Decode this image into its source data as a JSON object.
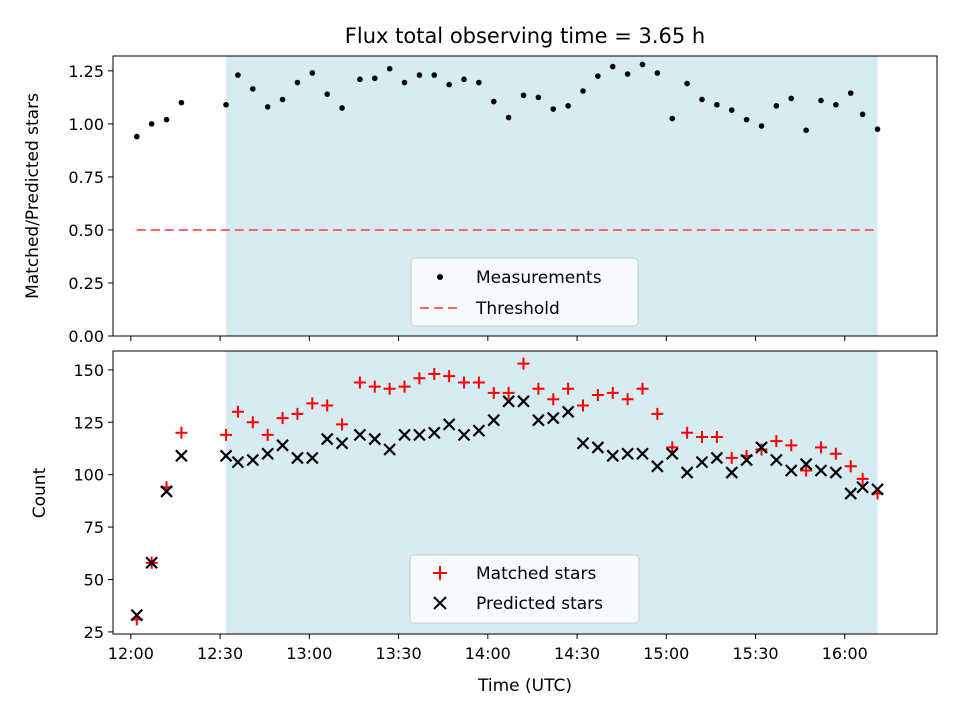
{
  "title": "Flux total observing time = 3.65 h",
  "colors": {
    "shade": "#add8e6",
    "threshold": "#ff6666",
    "matched": "#ff0000",
    "predicted": "#000000",
    "measurement": "#000000"
  },
  "chart_data": [
    {
      "type": "scatter",
      "name": "ratio",
      "title": "Flux total observing time = 3.65 h",
      "xlabel": "",
      "ylabel": "Matched/Predicted stars",
      "x_unit": "minutes after 12:00 UTC",
      "xlim": [
        -6,
        271
      ],
      "ylim": [
        0.0,
        1.32
      ],
      "yticks": [
        "0.00",
        "0.25",
        "0.50",
        "0.75",
        "1.00",
        "1.25"
      ],
      "yticks_values": [
        0.0,
        0.25,
        0.5,
        0.75,
        1.0,
        1.25
      ],
      "shaded_span": [
        32,
        251
      ],
      "legend": {
        "placement": "lower center",
        "entries": [
          "Measurements",
          "Threshold"
        ]
      },
      "threshold": {
        "name": "Threshold",
        "y": 0.5,
        "x_range": [
          2,
          251
        ]
      },
      "series": [
        {
          "name": "Measurements",
          "x": [
            2,
            7,
            12,
            17,
            32,
            36,
            41,
            46,
            51,
            56,
            61,
            66,
            71,
            77,
            82,
            87,
            92,
            97,
            102,
            107,
            112,
            117,
            122,
            127,
            132,
            137,
            142,
            147,
            152,
            157,
            162,
            167,
            172,
            177,
            182,
            187,
            192,
            197,
            202,
            207,
            212,
            217,
            222,
            227,
            232,
            237,
            242,
            246,
            251
          ],
          "y": [
            0.94,
            1.0,
            1.02,
            1.1,
            1.09,
            1.23,
            1.165,
            1.08,
            1.115,
            1.195,
            1.24,
            1.14,
            1.075,
            1.21,
            1.215,
            1.26,
            1.195,
            1.23,
            1.23,
            1.185,
            1.21,
            1.195,
            1.105,
            1.03,
            1.135,
            1.125,
            1.07,
            1.085,
            1.155,
            1.225,
            1.27,
            1.235,
            1.28,
            1.24,
            1.025,
            1.19,
            1.115,
            1.09,
            1.065,
            1.02,
            0.99,
            1.085,
            1.12,
            0.97,
            1.11,
            1.09,
            1.145,
            1.045,
            0.975
          ]
        }
      ]
    },
    {
      "type": "scatter",
      "name": "counts",
      "title": "",
      "xlabel": "Time (UTC)",
      "ylabel": "Count",
      "x_unit": "minutes after 12:00 UTC",
      "xlim": [
        -6,
        271
      ],
      "ylim": [
        24,
        159
      ],
      "xticks": [
        "12:00",
        "12:30",
        "13:00",
        "13:30",
        "14:00",
        "14:30",
        "15:00",
        "15:30",
        "16:00"
      ],
      "xticks_values": [
        0,
        30,
        60,
        90,
        120,
        150,
        180,
        210,
        240
      ],
      "yticks": [
        "25",
        "50",
        "75",
        "100",
        "125",
        "150"
      ],
      "yticks_values": [
        25,
        50,
        75,
        100,
        125,
        150
      ],
      "shaded_span": [
        32,
        251
      ],
      "legend": {
        "placement": "lower center",
        "entries": [
          "Matched stars",
          "Predicted stars"
        ]
      },
      "series": [
        {
          "name": "Matched stars",
          "marker": "+",
          "x": [
            2,
            7,
            12,
            17,
            32,
            36,
            41,
            46,
            51,
            56,
            61,
            66,
            71,
            77,
            82,
            87,
            92,
            97,
            102,
            107,
            112,
            117,
            122,
            127,
            132,
            137,
            142,
            147,
            152,
            157,
            162,
            167,
            172,
            177,
            182,
            187,
            192,
            197,
            202,
            207,
            212,
            217,
            222,
            227,
            232,
            237,
            242,
            246,
            251
          ],
          "y": [
            31,
            58,
            94,
            120,
            119,
            130,
            125,
            119,
            127,
            129,
            134,
            133,
            124,
            144,
            142,
            141,
            142,
            146,
            148,
            147,
            144,
            144,
            139,
            139,
            153,
            141,
            136,
            141,
            133,
            138,
            139,
            136,
            141,
            129,
            113,
            120,
            118,
            118,
            108,
            109,
            112,
            116,
            114,
            102,
            113,
            110,
            104,
            98,
            91
          ]
        },
        {
          "name": "Predicted stars",
          "marker": "x",
          "x": [
            2,
            7,
            12,
            17,
            32,
            36,
            41,
            46,
            51,
            56,
            61,
            66,
            71,
            77,
            82,
            87,
            92,
            97,
            102,
            107,
            112,
            117,
            122,
            127,
            132,
            137,
            142,
            147,
            152,
            157,
            162,
            167,
            172,
            177,
            182,
            187,
            192,
            197,
            202,
            207,
            212,
            217,
            222,
            227,
            232,
            237,
            242,
            246,
            251
          ],
          "y": [
            33,
            58,
            92,
            109,
            109,
            106,
            107,
            110,
            114,
            108,
            108,
            117,
            115,
            119,
            117,
            112,
            119,
            119,
            120,
            124,
            119,
            121,
            126,
            135,
            135,
            126,
            127,
            130,
            115,
            113,
            109,
            110,
            110,
            104,
            110,
            101,
            106,
            108,
            101,
            107,
            113,
            107,
            102,
            105,
            102,
            101,
            91,
            94,
            93
          ]
        }
      ]
    }
  ]
}
